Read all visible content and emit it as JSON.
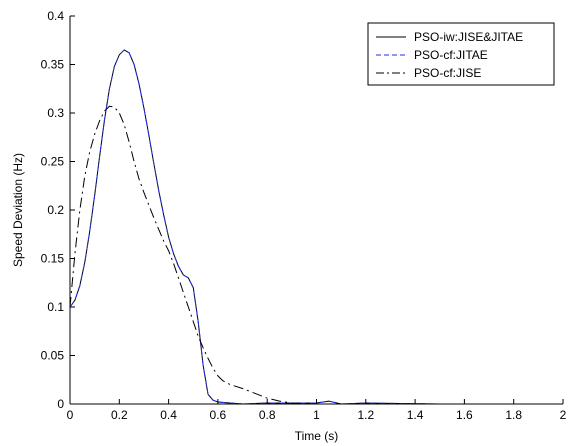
{
  "chart_data": {
    "type": "line",
    "xlabel": "Time (s)",
    "ylabel": "Speed Deviation (Hz)",
    "xlim": [
      0,
      2
    ],
    "ylim": [
      0,
      0.4
    ],
    "xticks": [
      "0",
      "0.2",
      "0.4",
      "0.6",
      "0.8",
      "1",
      "1.2",
      "1.4",
      "1.6",
      "1.8",
      "2"
    ],
    "yticks": [
      "0",
      "0.05",
      "0.1",
      "0.15",
      "0.2",
      "0.25",
      "0.3",
      "0.35",
      "0.4"
    ],
    "grid": false,
    "legend_position": "top-right",
    "series": [
      {
        "name": "PSO-iw:JISE&JITAE",
        "color": "#000000",
        "style": "solid",
        "x": [
          0,
          0.02,
          0.04,
          0.06,
          0.08,
          0.1,
          0.12,
          0.14,
          0.16,
          0.18,
          0.2,
          0.22,
          0.24,
          0.26,
          0.28,
          0.3,
          0.32,
          0.34,
          0.36,
          0.38,
          0.4,
          0.42,
          0.44,
          0.46,
          0.48,
          0.5,
          0.52,
          0.54,
          0.56,
          0.58,
          0.6,
          0.65,
          0.7,
          0.8,
          1.0,
          1.05,
          1.1,
          1.2,
          1.5,
          2.0
        ],
        "y": [
          0.1,
          0.107,
          0.122,
          0.146,
          0.178,
          0.215,
          0.255,
          0.293,
          0.325,
          0.348,
          0.36,
          0.365,
          0.362,
          0.35,
          0.33,
          0.305,
          0.277,
          0.248,
          0.22,
          0.195,
          0.172,
          0.155,
          0.142,
          0.133,
          0.13,
          0.12,
          0.085,
          0.04,
          0.01,
          0.004,
          0.002,
          0.001,
          0.0,
          0.001,
          0.001,
          0.003,
          0.0,
          0.001,
          0.0,
          0.0
        ]
      },
      {
        "name": "PSO-cf:JITAE",
        "color": "#1f2ee8",
        "style": "dashed",
        "x": [
          0,
          0.02,
          0.04,
          0.06,
          0.08,
          0.1,
          0.12,
          0.14,
          0.16,
          0.18,
          0.2,
          0.22,
          0.24,
          0.26,
          0.28,
          0.3,
          0.32,
          0.34,
          0.36,
          0.38,
          0.4,
          0.42,
          0.44,
          0.46,
          0.48,
          0.5,
          0.52,
          0.54,
          0.56,
          0.58,
          0.6,
          0.65,
          0.7,
          0.8,
          1.0,
          1.05,
          1.1,
          1.2,
          1.5,
          2.0
        ],
        "y": [
          0.1,
          0.107,
          0.122,
          0.146,
          0.178,
          0.215,
          0.255,
          0.293,
          0.325,
          0.348,
          0.36,
          0.365,
          0.362,
          0.35,
          0.33,
          0.305,
          0.277,
          0.248,
          0.22,
          0.195,
          0.172,
          0.155,
          0.142,
          0.133,
          0.13,
          0.12,
          0.085,
          0.04,
          0.01,
          0.004,
          0.002,
          0.001,
          0.0,
          0.001,
          0.001,
          0.003,
          0.0,
          0.001,
          0.0,
          0.0
        ]
      },
      {
        "name": "PSO-cf:JISE",
        "color": "#000000",
        "style": "dashdot",
        "x": [
          0,
          0.02,
          0.04,
          0.06,
          0.08,
          0.1,
          0.12,
          0.14,
          0.16,
          0.18,
          0.2,
          0.22,
          0.24,
          0.26,
          0.28,
          0.3,
          0.32,
          0.34,
          0.36,
          0.38,
          0.4,
          0.42,
          0.44,
          0.46,
          0.48,
          0.5,
          0.52,
          0.54,
          0.56,
          0.58,
          0.6,
          0.62,
          0.65,
          0.7,
          0.75,
          0.8,
          0.85,
          0.9,
          1.0,
          1.2,
          1.5,
          2.0
        ],
        "y": [
          0.1,
          0.155,
          0.2,
          0.235,
          0.26,
          0.278,
          0.292,
          0.302,
          0.307,
          0.306,
          0.3,
          0.288,
          0.27,
          0.25,
          0.232,
          0.218,
          0.205,
          0.192,
          0.18,
          0.168,
          0.158,
          0.145,
          0.13,
          0.115,
          0.1,
          0.085,
          0.07,
          0.058,
          0.047,
          0.037,
          0.029,
          0.024,
          0.02,
          0.016,
          0.011,
          0.006,
          0.003,
          0.001,
          0.0,
          0.0,
          0.0,
          0.0
        ]
      }
    ]
  }
}
